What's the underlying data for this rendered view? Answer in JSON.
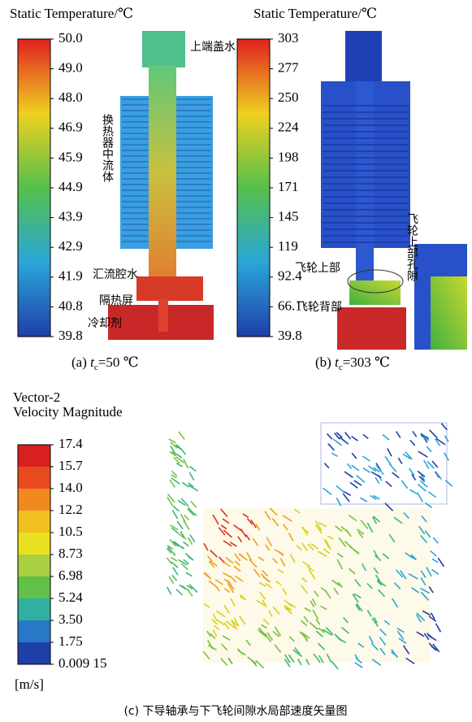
{
  "panel_a": {
    "title": "Static Temperature/℃",
    "colorbar_labels": [
      "50.0",
      "49.0",
      "48.0",
      "46.9",
      "45.9",
      "44.9",
      "43.9",
      "42.9",
      "41.9",
      "40.8",
      "39.8"
    ],
    "annotations": [
      "上端盖水",
      "换热器中流体",
      "汇流腔水",
      "隔热屏",
      "冷却剂"
    ],
    "caption": {
      "label": "(a) ",
      "var": "t",
      "sub": "c",
      "text": "=50 ℃"
    }
  },
  "panel_b": {
    "title": "Static Temperature/℃",
    "colorbar_labels": [
      "303",
      "277",
      "250",
      "224",
      "198",
      "171",
      "145",
      "119",
      "92.4",
      "66.1",
      "39.8"
    ],
    "annotations": [
      "飞轮上部",
      "飞轮背部",
      "飞轮上部孔隙"
    ],
    "caption": {
      "label": "(b) ",
      "var": "t",
      "sub": "c",
      "text": "=303 ℃"
    }
  },
  "panel_c": {
    "title_lines": [
      "Vector-2",
      "Velocity Magnitude"
    ],
    "colorbar_labels": [
      "17.4",
      "15.7",
      "14.0",
      "12.2",
      "10.5",
      "8.73",
      "6.98",
      "5.24",
      "3.50",
      "1.75",
      "0.009 15"
    ],
    "unit": "[m/s]",
    "caption": "(c) 下导轴承与下飞轮间隙水局部速度矢量图"
  }
}
